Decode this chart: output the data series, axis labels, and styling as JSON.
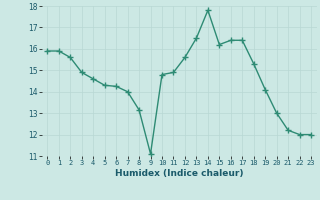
{
  "x": [
    0,
    1,
    2,
    3,
    4,
    5,
    6,
    7,
    8,
    9,
    10,
    11,
    12,
    13,
    14,
    15,
    16,
    17,
    18,
    19,
    20,
    21,
    22,
    23
  ],
  "y": [
    15.9,
    15.9,
    15.6,
    14.9,
    14.6,
    14.3,
    14.25,
    14.0,
    13.15,
    11.1,
    14.8,
    14.9,
    15.6,
    16.5,
    17.8,
    16.2,
    16.4,
    16.4,
    15.3,
    14.1,
    13.0,
    12.2,
    12.0,
    12.0
  ],
  "xlabel": "Humidex (Indice chaleur)",
  "ylim": [
    11,
    18
  ],
  "xlim": [
    -0.5,
    23.5
  ],
  "yticks": [
    11,
    12,
    13,
    14,
    15,
    16,
    17,
    18
  ],
  "xticks": [
    0,
    1,
    2,
    3,
    4,
    5,
    6,
    7,
    8,
    9,
    10,
    11,
    12,
    13,
    14,
    15,
    16,
    17,
    18,
    19,
    20,
    21,
    22,
    23
  ],
  "line_color": "#2e8b74",
  "bg_color": "#cce8e4",
  "grid_color": "#b8d8d4",
  "marker": "+",
  "marker_size": 4,
  "linewidth": 1.0
}
